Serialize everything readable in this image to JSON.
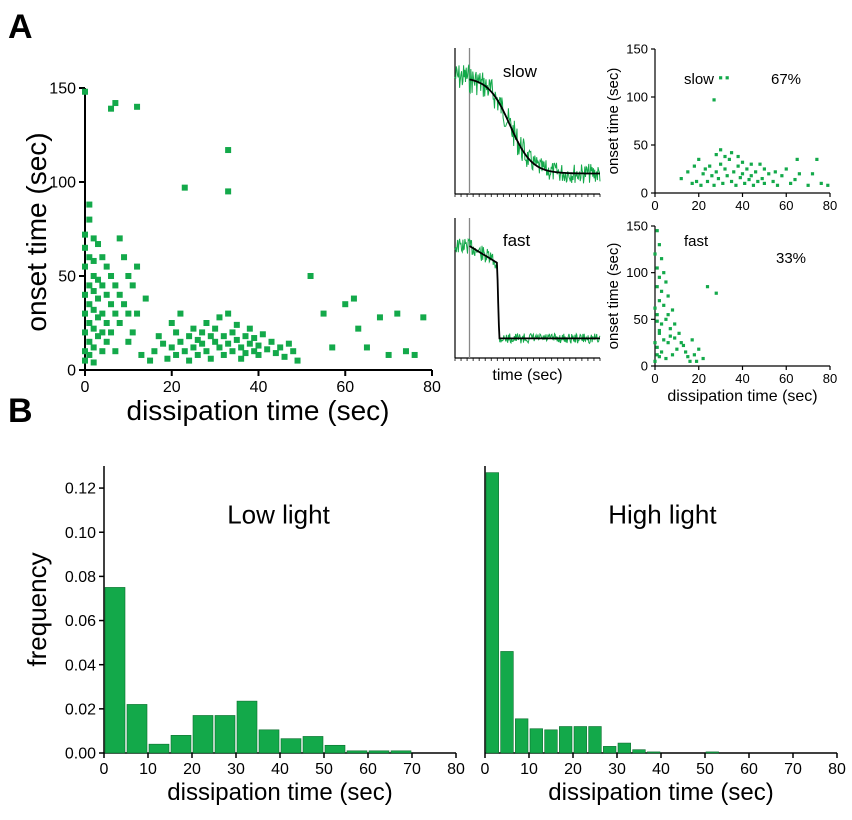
{
  "panel_labels": [
    "A",
    "B"
  ],
  "colors": {
    "green": "#13a94a",
    "bar_fill": "#13a94a",
    "bar_stroke": "#0b6e2e",
    "fit_line": "#000000",
    "axis": "#000000"
  },
  "chart_data": [
    {
      "id": "A-main",
      "type": "scatter",
      "xlabel": "dissipation time (sec)",
      "ylabel": "onset time (sec)",
      "xlim": [
        0,
        80
      ],
      "ylim": [
        0,
        150
      ],
      "xticks": [
        0,
        20,
        40,
        60,
        80
      ],
      "yticks": [
        0,
        50,
        100,
        150
      ],
      "points_note": "representative sample of visible points",
      "points": [
        [
          0,
          148
        ],
        [
          0,
          72
        ],
        [
          0,
          65
        ],
        [
          0,
          55
        ],
        [
          0,
          40
        ],
        [
          0,
          30
        ],
        [
          0,
          20
        ],
        [
          0,
          10
        ],
        [
          0,
          5
        ],
        [
          1,
          88
        ],
        [
          1,
          80
        ],
        [
          1,
          60
        ],
        [
          1,
          45
        ],
        [
          1,
          35
        ],
        [
          1,
          25
        ],
        [
          1,
          15
        ],
        [
          1,
          8
        ],
        [
          2,
          70
        ],
        [
          2,
          58
        ],
        [
          2,
          50
        ],
        [
          2,
          42
        ],
        [
          2,
          32
        ],
        [
          2,
          22
        ],
        [
          2,
          12
        ],
        [
          2,
          4
        ],
        [
          3,
          67
        ],
        [
          3,
          48
        ],
        [
          3,
          38
        ],
        [
          3,
          28
        ],
        [
          3,
          18
        ],
        [
          4,
          60
        ],
        [
          4,
          45
        ],
        [
          4,
          30
        ],
        [
          4,
          20
        ],
        [
          4,
          10
        ],
        [
          5,
          55
        ],
        [
          5,
          40
        ],
        [
          5,
          25
        ],
        [
          5,
          15
        ],
        [
          6,
          139
        ],
        [
          6,
          50
        ],
        [
          6,
          35
        ],
        [
          6,
          20
        ],
        [
          7,
          142
        ],
        [
          7,
          45
        ],
        [
          7,
          30
        ],
        [
          7,
          10
        ],
        [
          8,
          70
        ],
        [
          8,
          40
        ],
        [
          8,
          25
        ],
        [
          9,
          60
        ],
        [
          9,
          35
        ],
        [
          10,
          50
        ],
        [
          10,
          30
        ],
        [
          10,
          15
        ],
        [
          11,
          45
        ],
        [
          11,
          20
        ],
        [
          12,
          140
        ],
        [
          12,
          55
        ],
        [
          12,
          30
        ],
        [
          13,
          8
        ],
        [
          14,
          38
        ],
        [
          15,
          5
        ],
        [
          16,
          10
        ],
        [
          17,
          18
        ],
        [
          18,
          14
        ],
        [
          19,
          6
        ],
        [
          20,
          25
        ],
        [
          20,
          12
        ],
        [
          21,
          20
        ],
        [
          21,
          8
        ],
        [
          22,
          15
        ],
        [
          22,
          30
        ],
        [
          23,
          97
        ],
        [
          23,
          10
        ],
        [
          24,
          18
        ],
        [
          24,
          5
        ],
        [
          25,
          22
        ],
        [
          25,
          12
        ],
        [
          26,
          16
        ],
        [
          26,
          8
        ],
        [
          27,
          20
        ],
        [
          27,
          14
        ],
        [
          28,
          10
        ],
        [
          28,
          25
        ],
        [
          29,
          18
        ],
        [
          29,
          6
        ],
        [
          30,
          15
        ],
        [
          30,
          22
        ],
        [
          31,
          12
        ],
        [
          31,
          28
        ],
        [
          32,
          18
        ],
        [
          32,
          8
        ],
        [
          33,
          117
        ],
        [
          33,
          95
        ],
        [
          33,
          14
        ],
        [
          33,
          30
        ],
        [
          34,
          20
        ],
        [
          34,
          10
        ],
        [
          35,
          16
        ],
        [
          35,
          24
        ],
        [
          36,
          12
        ],
        [
          36,
          6
        ],
        [
          37,
          18
        ],
        [
          37,
          9
        ],
        [
          38,
          22
        ],
        [
          38,
          14
        ],
        [
          39,
          10
        ],
        [
          39,
          17
        ],
        [
          40,
          13
        ],
        [
          40,
          8
        ],
        [
          41,
          19
        ],
        [
          42,
          11
        ],
        [
          43,
          15
        ],
        [
          44,
          9
        ],
        [
          45,
          12
        ],
        [
          46,
          7
        ],
        [
          47,
          14
        ],
        [
          48,
          10
        ],
        [
          49,
          5
        ],
        [
          52,
          50
        ],
        [
          55,
          30
        ],
        [
          57,
          12
        ],
        [
          60,
          35
        ],
        [
          62,
          38
        ],
        [
          63,
          22
        ],
        [
          65,
          12
        ],
        [
          68,
          28
        ],
        [
          70,
          8
        ],
        [
          72,
          30
        ],
        [
          74,
          10
        ],
        [
          76,
          8
        ],
        [
          78,
          28
        ]
      ]
    },
    {
      "id": "A-trace-slow",
      "type": "line",
      "label": "slow",
      "xlabel": "",
      "description_free": true
    },
    {
      "id": "A-trace-fast",
      "type": "line",
      "label": "fast",
      "xlabel": "time (sec)"
    },
    {
      "id": "A-slow-scatter",
      "type": "scatter",
      "label": "slow",
      "percent": "67%",
      "xlabel": "",
      "ylabel": "onset time (sec)",
      "xlim": [
        0,
        80
      ],
      "ylim": [
        0,
        150
      ],
      "xticks": [
        0,
        20,
        40,
        60,
        80
      ],
      "yticks": [
        0,
        50,
        100,
        150
      ],
      "points": [
        [
          30,
          120
        ],
        [
          33,
          120
        ],
        [
          27,
          97
        ],
        [
          20,
          35
        ],
        [
          22,
          20
        ],
        [
          24,
          12
        ],
        [
          25,
          28
        ],
        [
          26,
          18
        ],
        [
          27,
          8
        ],
        [
          28,
          22
        ],
        [
          29,
          15
        ],
        [
          30,
          30
        ],
        [
          31,
          10
        ],
        [
          32,
          25
        ],
        [
          33,
          18
        ],
        [
          34,
          35
        ],
        [
          35,
          12
        ],
        [
          36,
          22
        ],
        [
          37,
          8
        ],
        [
          38,
          28
        ],
        [
          39,
          16
        ],
        [
          40,
          20
        ],
        [
          41,
          10
        ],
        [
          42,
          25
        ],
        [
          43,
          14
        ],
        [
          44,
          18
        ],
        [
          45,
          8
        ],
        [
          46,
          22
        ],
        [
          47,
          12
        ],
        [
          48,
          30
        ],
        [
          49,
          15
        ],
        [
          50,
          10
        ],
        [
          52,
          20
        ],
        [
          54,
          12
        ],
        [
          56,
          8
        ],
        [
          58,
          18
        ],
        [
          60,
          25
        ],
        [
          62,
          10
        ],
        [
          64,
          14
        ],
        [
          66,
          20
        ],
        [
          70,
          8
        ],
        [
          72,
          20
        ],
        [
          76,
          10
        ],
        [
          79,
          8
        ],
        [
          12,
          15
        ],
        [
          15,
          22
        ],
        [
          17,
          10
        ],
        [
          18,
          28
        ],
        [
          19,
          12
        ],
        [
          21,
          8
        ],
        [
          23,
          25
        ],
        [
          28,
          40
        ],
        [
          30,
          45
        ],
        [
          32,
          38
        ],
        [
          35,
          42
        ],
        [
          38,
          38
        ],
        [
          40,
          32
        ],
        [
          44,
          30
        ],
        [
          50,
          25
        ],
        [
          55,
          22
        ],
        [
          65,
          35
        ],
        [
          74,
          35
        ]
      ]
    },
    {
      "id": "A-fast-scatter",
      "type": "scatter",
      "label": "fast",
      "percent": "33%",
      "xlabel": "dissipation time (sec)",
      "ylabel": "onset time (sec)",
      "xlim": [
        0,
        80
      ],
      "ylim": [
        0,
        150
      ],
      "xticks": [
        0,
        20,
        40,
        60,
        80
      ],
      "yticks": [
        0,
        50,
        100,
        150
      ],
      "points": [
        [
          1,
          145
        ],
        [
          2,
          130
        ],
        [
          0,
          120
        ],
        [
          3,
          115
        ],
        [
          1,
          105
        ],
        [
          4,
          100
        ],
        [
          2,
          95
        ],
        [
          5,
          90
        ],
        [
          1,
          85
        ],
        [
          3,
          80
        ],
        [
          6,
          75
        ],
        [
          2,
          70
        ],
        [
          4,
          65
        ],
        [
          8,
          60
        ],
        [
          1,
          55
        ],
        [
          5,
          50
        ],
        [
          3,
          45
        ],
        [
          7,
          40
        ],
        [
          2,
          35
        ],
        [
          9,
          30
        ],
        [
          4,
          28
        ],
        [
          6,
          25
        ],
        [
          1,
          20
        ],
        [
          10,
          18
        ],
        [
          3,
          15
        ],
        [
          8,
          12
        ],
        [
          2,
          10
        ],
        [
          5,
          8
        ],
        [
          12,
          25
        ],
        [
          14,
          15
        ],
        [
          15,
          10
        ],
        [
          16,
          5
        ],
        [
          18,
          12
        ],
        [
          20,
          18
        ],
        [
          22,
          8
        ],
        [
          24,
          85
        ],
        [
          28,
          78
        ],
        [
          0,
          62
        ],
        [
          1,
          48
        ],
        [
          2,
          38
        ],
        [
          0,
          25
        ],
        [
          1,
          12
        ],
        [
          0,
          5
        ],
        [
          6,
          55
        ],
        [
          7,
          32
        ],
        [
          9,
          45
        ],
        [
          11,
          35
        ],
        [
          13,
          22
        ],
        [
          17,
          28
        ],
        [
          19,
          5
        ]
      ]
    },
    {
      "id": "B-low",
      "type": "bar",
      "title": "Low light",
      "xlabel": "dissipation time (sec)",
      "ylabel": "frequency",
      "xlim": [
        0,
        80
      ],
      "ylim": [
        0,
        0.13
      ],
      "xticks": [
        0,
        10,
        20,
        30,
        40,
        50,
        60,
        70,
        80
      ],
      "yticks": [
        "0.00",
        "0.02",
        "0.04",
        "0.06",
        "0.08",
        "0.10",
        "0.12"
      ],
      "bin_width": 5,
      "bin_starts": [
        0,
        5,
        10,
        15,
        20,
        25,
        30,
        35,
        40,
        45,
        50,
        55,
        60,
        65,
        70,
        75
      ],
      "values": [
        0.075,
        0.022,
        0.004,
        0.008,
        0.017,
        0.017,
        0.0235,
        0.0105,
        0.0065,
        0.0075,
        0.0035,
        0.001,
        0.001,
        0.001,
        0,
        0
      ]
    },
    {
      "id": "B-high",
      "type": "bar",
      "title": "High light",
      "xlabel": "dissipation time (sec)",
      "ylabel": "",
      "xlim": [
        0,
        80
      ],
      "ylim": [
        0,
        0.13
      ],
      "xticks": [
        0,
        10,
        20,
        30,
        40,
        50,
        60,
        70,
        80
      ],
      "bin_width": 3.33,
      "bin_starts": [
        0,
        3.33,
        6.67,
        10,
        13.33,
        16.67,
        20,
        23.33,
        26.67,
        30,
        33.33,
        36.67,
        40,
        50
      ],
      "values": [
        0.127,
        0.046,
        0.0155,
        0.011,
        0.0105,
        0.012,
        0.012,
        0.012,
        0.003,
        0.0045,
        0.0015,
        0.0005,
        0,
        0.0005
      ]
    }
  ]
}
